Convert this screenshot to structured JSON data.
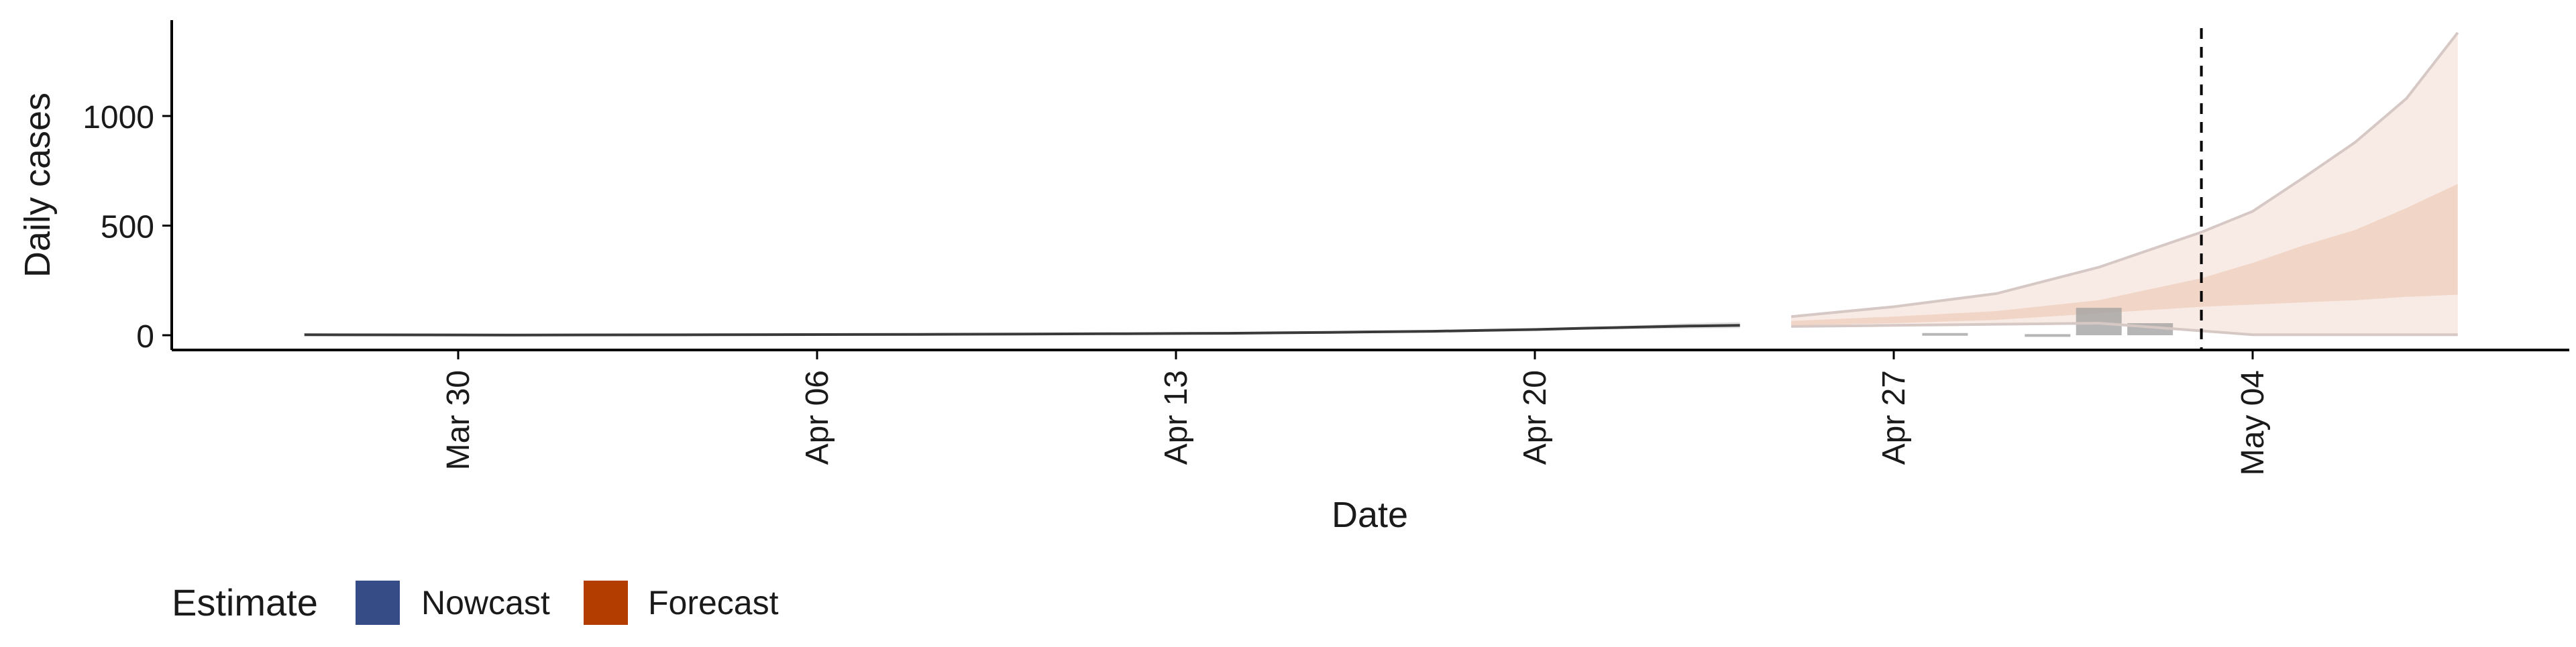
{
  "chart_data": {
    "type": "area",
    "title": "",
    "xlabel": "Date",
    "ylabel": "Daily cases",
    "x_ticks": [
      "Mar 30",
      "Apr 06",
      "Apr 13",
      "Apr 20",
      "Apr 27",
      "May 04"
    ],
    "y_ticks": [
      "0",
      "500",
      "1000"
    ],
    "ylim": [
      -60,
      1420
    ],
    "grid": false,
    "legend": {
      "position": "bottom-left",
      "title": "Estimate",
      "entries": [
        {
          "label": "Nowcast",
          "color": "#354c86"
        },
        {
          "label": "Forecast",
          "color": "#b33c00"
        }
      ]
    },
    "vline": {
      "date": "2020-05-03"
    },
    "observed_cases": {
      "dates": [
        "2020-04-28",
        "2020-04-30",
        "2020-05-01",
        "2020-05-02"
      ],
      "values": [
        10,
        5,
        125,
        55
      ]
    },
    "estimate_series": [
      {
        "name": "Nowcast",
        "dates": [
          "2020-03-27",
          "2020-03-31",
          "2020-04-04",
          "2020-04-08",
          "2020-04-12",
          "2020-04-14",
          "2020-04-16",
          "2020-04-18",
          "2020-04-19",
          "2020-04-20",
          "2020-04-21",
          "2020-04-22",
          "2020-04-23",
          "2020-04-24"
        ],
        "median": [
          2,
          1,
          2,
          4,
          7,
          9,
          13,
          18,
          22,
          26,
          32,
          37,
          42,
          45
        ],
        "upper_90": [
          2,
          2,
          3,
          5,
          8,
          11,
          15,
          21,
          25,
          30,
          37,
          45,
          55,
          60
        ],
        "lower_90": [
          2,
          1,
          1,
          3,
          6,
          8,
          11,
          15,
          18,
          22,
          25,
          28,
          30,
          32
        ]
      },
      {
        "name": "Forecast",
        "dates": [
          "2020-04-25",
          "2020-04-27",
          "2020-04-29",
          "2020-05-01",
          "2020-05-03",
          "2020-05-04",
          "2020-05-05",
          "2020-05-06",
          "2020-05-07",
          "2020-05-08"
        ],
        "median": [
          55,
          62,
          75,
          95,
          120,
          135,
          150,
          170,
          185,
          200
        ],
        "upper_90": [
          85,
          130,
          190,
          310,
          470,
          565,
          720,
          880,
          1080,
          1380
        ],
        "lower_90": [
          40,
          45,
          50,
          55,
          20,
          2,
          2,
          2,
          2,
          2
        ],
        "upper_50": [
          65,
          85,
          110,
          160,
          260,
          330,
          410,
          480,
          580,
          690
        ],
        "lower_50": [
          45,
          55,
          70,
          100,
          130,
          140,
          150,
          160,
          175,
          185
        ]
      }
    ]
  }
}
